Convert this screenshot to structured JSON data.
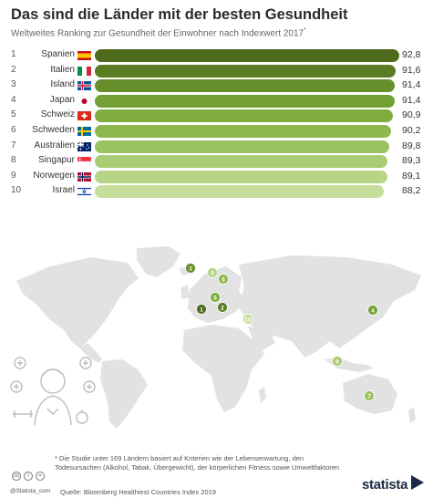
{
  "title": "Das sind die Länder mit der besten Gesundheit",
  "subtitle": "Weltweites Ranking zur Gesundheit der Einwohner nach Indexwert 2017",
  "subtitle_mark": "*",
  "chart_data": {
    "type": "bar",
    "orientation": "horizontal",
    "categories": [
      "Spanien",
      "Italien",
      "Island",
      "Japan",
      "Schweiz",
      "Schweden",
      "Australien",
      "Singapur",
      "Norwegen",
      "Israel"
    ],
    "ranks": [
      "1",
      "2",
      "3",
      "4",
      "5",
      "6",
      "7",
      "8",
      "9",
      "10"
    ],
    "values": [
      92.8,
      91.6,
      91.4,
      91.4,
      90.9,
      90.2,
      89.8,
      89.3,
      89.1,
      88.2
    ],
    "value_labels": [
      "92,8",
      "91,6",
      "91,4",
      "91,4",
      "90,9",
      "90,2",
      "89,8",
      "89,3",
      "89,1",
      "88,2"
    ],
    "colors": [
      "#4e6b1b",
      "#5a7d23",
      "#668f2b",
      "#72a034",
      "#7fad3d",
      "#8db84e",
      "#9bc261",
      "#a9cc74",
      "#b7d587",
      "#c5de9b"
    ],
    "flags": [
      "es-flag",
      "it-flag",
      "is-flag",
      "jp-flag",
      "ch-flag",
      "se-flag",
      "au-flag",
      "sg-flag",
      "no-flag",
      "il-flag"
    ],
    "grid": false,
    "legend": "none"
  },
  "map": {
    "land_color": "#e2e2e2",
    "markers": [
      "1",
      "2",
      "3",
      "4",
      "5",
      "6",
      "7",
      "8",
      "9",
      "10"
    ],
    "marker_colors": [
      "#4e6b1b",
      "#5a7d23",
      "#668f2b",
      "#72a034",
      "#7fad3d",
      "#8db84e",
      "#9bc261",
      "#a9cc74",
      "#b7d587",
      "#c5de9b"
    ]
  },
  "illustration": "healthy-person-icon",
  "footnote": "* Die Studie unter 169 Ländern basiert auf Kriterien wie der Lebenserwartung, den Todesursachen (Alkohol, Tabak, Übergewicht), der körperlichen Fitness sowie Umweltfaktoren",
  "source": "Quelle: Bloomberg Healthiest Countries Index 2019",
  "handle": "@Statista_com",
  "license_icons": [
    "cc",
    "i",
    "="
  ],
  "logo": "statista"
}
